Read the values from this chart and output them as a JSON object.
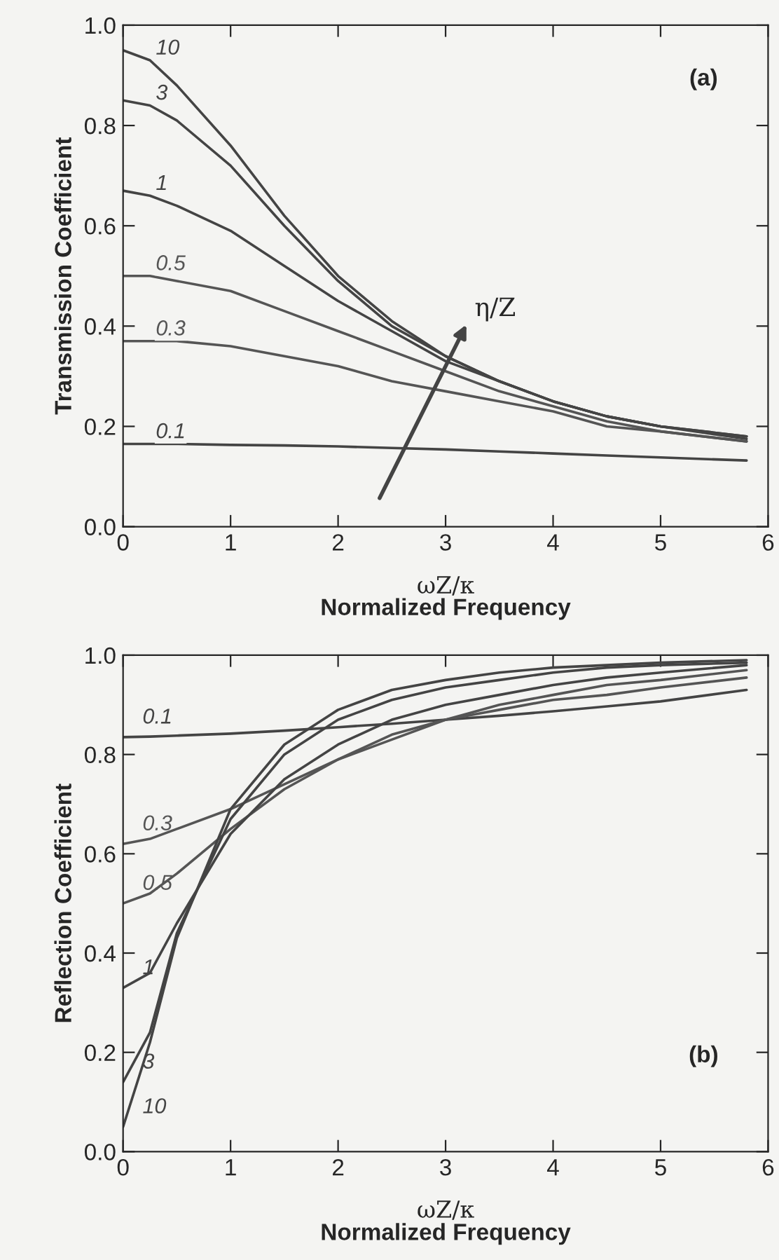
{
  "chart_data": [
    {
      "type": "line",
      "xlabel": "Normalized Frequency",
      "ylabel": "Transmission Coefficient",
      "annotations": [
        "(a)",
        "η/Z",
        "ωZ/κ"
      ],
      "x": [
        0,
        0.25,
        0.5,
        1,
        1.5,
        2,
        2.5,
        3,
        3.5,
        4,
        4.5,
        5,
        5.8
      ],
      "series": [
        {
          "name": "10",
          "color": "#444444",
          "values": [
            0.95,
            0.93,
            0.88,
            0.76,
            0.62,
            0.5,
            0.41,
            0.34,
            0.29,
            0.25,
            0.22,
            0.2,
            0.18
          ]
        },
        {
          "name": "3",
          "color": "#444444",
          "values": [
            0.85,
            0.84,
            0.81,
            0.72,
            0.6,
            0.49,
            0.4,
            0.34,
            0.29,
            0.25,
            0.22,
            0.2,
            0.18
          ]
        },
        {
          "name": "1",
          "color": "#444444",
          "values": [
            0.67,
            0.66,
            0.64,
            0.59,
            0.52,
            0.45,
            0.39,
            0.33,
            0.29,
            0.25,
            0.22,
            0.2,
            0.175
          ]
        },
        {
          "name": "0.5",
          "color": "#555555",
          "values": [
            0.5,
            0.5,
            0.49,
            0.47,
            0.43,
            0.39,
            0.35,
            0.31,
            0.27,
            0.24,
            0.21,
            0.19,
            0.17
          ]
        },
        {
          "name": "0.3",
          "color": "#555555",
          "values": [
            0.37,
            0.37,
            0.37,
            0.36,
            0.34,
            0.32,
            0.29,
            0.27,
            0.25,
            0.23,
            0.2,
            0.19,
            0.17
          ]
        },
        {
          "name": "0.1",
          "color": "#444444",
          "values": [
            0.165,
            0.165,
            0.165,
            0.163,
            0.162,
            0.16,
            0.157,
            0.154,
            0.15,
            0.146,
            0.142,
            0.138,
            0.132
          ]
        }
      ],
      "xlim": [
        0,
        6
      ],
      "ylim": [
        0,
        1
      ],
      "xticks": [
        0,
        1,
        2,
        3,
        4,
        5,
        6
      ],
      "yticks": [
        {
          "value": 0,
          "label": "0.0"
        },
        {
          "value": 0.2,
          "label": "0.2"
        },
        {
          "value": 0.4,
          "label": "0.4"
        },
        {
          "value": 0.6,
          "label": "0.6"
        },
        {
          "value": 0.8,
          "label": "0.8"
        },
        {
          "value": 1,
          "label": "1.0"
        }
      ],
      "grid": false,
      "legend": false,
      "marker": "none",
      "line_style": "solid"
    },
    {
      "type": "line",
      "xlabel": "Normalized Frequency",
      "ylabel": "Reflection Coefficient",
      "annotations": [
        "(b)",
        "ωZ/κ"
      ],
      "x": [
        0,
        0.25,
        0.5,
        1,
        1.5,
        2,
        2.5,
        3,
        3.5,
        4,
        4.5,
        5,
        5.8
      ],
      "series": [
        {
          "name": "0.1",
          "color": "#444444",
          "values": [
            0.835,
            0.836,
            0.838,
            0.842,
            0.848,
            0.855,
            0.862,
            0.87,
            0.878,
            0.887,
            0.897,
            0.907,
            0.93
          ]
        },
        {
          "name": "0.3",
          "color": "#555555",
          "values": [
            0.62,
            0.63,
            0.65,
            0.69,
            0.74,
            0.79,
            0.83,
            0.87,
            0.89,
            0.91,
            0.92,
            0.935,
            0.955
          ]
        },
        {
          "name": "0.5",
          "color": "#555555",
          "values": [
            0.5,
            0.52,
            0.56,
            0.65,
            0.73,
            0.79,
            0.84,
            0.87,
            0.9,
            0.92,
            0.94,
            0.95,
            0.97
          ]
        },
        {
          "name": "1",
          "color": "#444444",
          "values": [
            0.33,
            0.36,
            0.46,
            0.64,
            0.75,
            0.82,
            0.87,
            0.9,
            0.92,
            0.94,
            0.955,
            0.965,
            0.98
          ]
        },
        {
          "name": "3",
          "color": "#444444",
          "values": [
            0.14,
            0.24,
            0.44,
            0.67,
            0.8,
            0.87,
            0.91,
            0.935,
            0.95,
            0.965,
            0.975,
            0.98,
            0.985
          ]
        },
        {
          "name": "10",
          "color": "#444444",
          "values": [
            0.05,
            0.22,
            0.43,
            0.69,
            0.82,
            0.89,
            0.93,
            0.95,
            0.965,
            0.975,
            0.98,
            0.985,
            0.99
          ]
        }
      ],
      "xlim": [
        0,
        6
      ],
      "ylim": [
        0,
        1
      ],
      "xticks": [
        0,
        1,
        2,
        3,
        4,
        5,
        6
      ],
      "yticks": [
        {
          "value": 0,
          "label": "0.0"
        },
        {
          "value": 0.2,
          "label": "0.2"
        },
        {
          "value": 0.4,
          "label": "0.4"
        },
        {
          "value": 0.6,
          "label": "0.6"
        },
        {
          "value": 0.8,
          "label": "0.8"
        },
        {
          "value": 1,
          "label": "1.0"
        }
      ],
      "grid": false,
      "legend": false,
      "marker": "none",
      "line_style": "solid"
    }
  ]
}
